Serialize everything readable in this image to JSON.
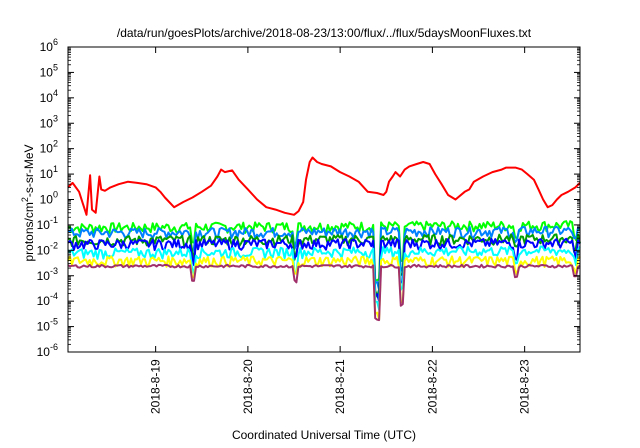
{
  "chart_data": {
    "type": "line",
    "title": "/data/run/goesPlots/archive/2018-08-23/13:00/flux/../flux/5daysMoonFluxes.txt",
    "xlabel": "Coordinated Universal Time (UTC)",
    "ylabel": {
      "prefix": "protons/cm",
      "sup": "2",
      "suffix": "-s-sr-MeV"
    },
    "yscale": "log",
    "ylim": [
      1e-06,
      1000000.0
    ],
    "y_ticks": [
      {
        "base": "10",
        "exp": "-6",
        "value": 1e-06
      },
      {
        "base": "10",
        "exp": "-5",
        "value": 1e-05
      },
      {
        "base": "10",
        "exp": "-4",
        "value": 0.0001
      },
      {
        "base": "10",
        "exp": "-3",
        "value": 0.001
      },
      {
        "base": "10",
        "exp": "-2",
        "value": 0.01
      },
      {
        "base": "10",
        "exp": "-1",
        "value": 0.1
      },
      {
        "base": "10",
        "exp": "0",
        "value": 1
      },
      {
        "base": "10",
        "exp": "1",
        "value": 10
      },
      {
        "base": "10",
        "exp": "2",
        "value": 100
      },
      {
        "base": "10",
        "exp": "3",
        "value": 1000
      },
      {
        "base": "10",
        "exp": "4",
        "value": 10000
      },
      {
        "base": "10",
        "exp": "5",
        "value": 100000
      },
      {
        "base": "10",
        "exp": "6",
        "value": 1000000
      }
    ],
    "xlim": [
      0,
      5.55
    ],
    "x_ticks": [
      {
        "label": "2018-8-19",
        "value": 0.95
      },
      {
        "label": "2018-8-20",
        "value": 1.95
      },
      {
        "label": "2018-8-21",
        "value": 2.95
      },
      {
        "label": "2018-8-22",
        "value": 3.95
      },
      {
        "label": "2018-8-23",
        "value": 4.95
      }
    ],
    "grid": false,
    "legend": "none",
    "series": [
      {
        "color": "#ff0000",
        "x": [
          0,
          0.05,
          0.12,
          0.16,
          0.2,
          0.24,
          0.26,
          0.3,
          0.34,
          0.36,
          0.4,
          0.46,
          0.55,
          0.65,
          0.75,
          0.85,
          0.95,
          1.0,
          1.05,
          1.15,
          1.25,
          1.35,
          1.45,
          1.55,
          1.62,
          1.66,
          1.7,
          1.78,
          1.85,
          1.95,
          2.05,
          2.15,
          2.25,
          2.35,
          2.45,
          2.5,
          2.55,
          2.58,
          2.62,
          2.65,
          2.7,
          2.75,
          2.85,
          2.95,
          3.05,
          3.15,
          3.25,
          3.35,
          3.42,
          3.45,
          3.48,
          3.52,
          3.55,
          3.6,
          3.65,
          3.7,
          3.78,
          3.85,
          3.92,
          3.98,
          4.05,
          4.12,
          4.2,
          4.3,
          4.35,
          4.4,
          4.5,
          4.6,
          4.7,
          4.75,
          4.85,
          4.92,
          4.98,
          5.05,
          5.1,
          5.15,
          5.2,
          5.25,
          5.3,
          5.35,
          5.42,
          5.5,
          5.55
        ],
        "y": [
          3.0,
          4.5,
          2.0,
          0.7,
          0.25,
          9.0,
          0.4,
          0.3,
          8.0,
          2.5,
          2.2,
          3.0,
          4.0,
          5.0,
          4.5,
          4.0,
          3.0,
          2.0,
          1.2,
          0.5,
          0.8,
          1.2,
          2.0,
          3.5,
          8.0,
          15.0,
          12.0,
          14.0,
          6.0,
          2.5,
          1.0,
          0.5,
          0.4,
          0.3,
          0.25,
          0.35,
          0.8,
          6.0,
          30.0,
          45.0,
          30.0,
          25.0,
          20.0,
          12.0,
          8.0,
          5.0,
          2.0,
          1.8,
          1.5,
          2.0,
          5.0,
          8.0,
          12.0,
          8.0,
          15.0,
          20.0,
          25.0,
          30.0,
          25.0,
          10.0,
          4.0,
          1.5,
          1.0,
          2.0,
          2.5,
          5.0,
          8.0,
          12.0,
          15.0,
          18.0,
          18.0,
          15.0,
          10.0,
          6.0,
          2.5,
          1.0,
          0.5,
          0.6,
          1.0,
          1.5,
          2.0,
          3.0,
          4.5
        ]
      },
      {
        "color": "#00ff00",
        "x": [
          0,
          5.55
        ],
        "y": [
          0.08,
          0.1
        ]
      },
      {
        "color": "#0080ff",
        "x": [
          0,
          5.55
        ],
        "y": [
          0.05,
          0.06
        ]
      },
      {
        "color": "#00a000",
        "x": [
          0,
          5.55
        ],
        "y": [
          0.025,
          0.03
        ]
      },
      {
        "color": "#0000ff",
        "x": [
          0,
          5.55
        ],
        "y": [
          0.018,
          0.02
        ]
      },
      {
        "color": "#00ffff",
        "x": [
          0,
          5.55
        ],
        "y": [
          0.008,
          0.01
        ]
      },
      {
        "color": "#ffff00",
        "x": [
          0,
          5.55
        ],
        "y": [
          0.004,
          0.004
        ]
      },
      {
        "color": "#a0306a",
        "x": [
          0,
          5.55
        ],
        "y": [
          0.0024,
          0.0024
        ]
      }
    ]
  }
}
